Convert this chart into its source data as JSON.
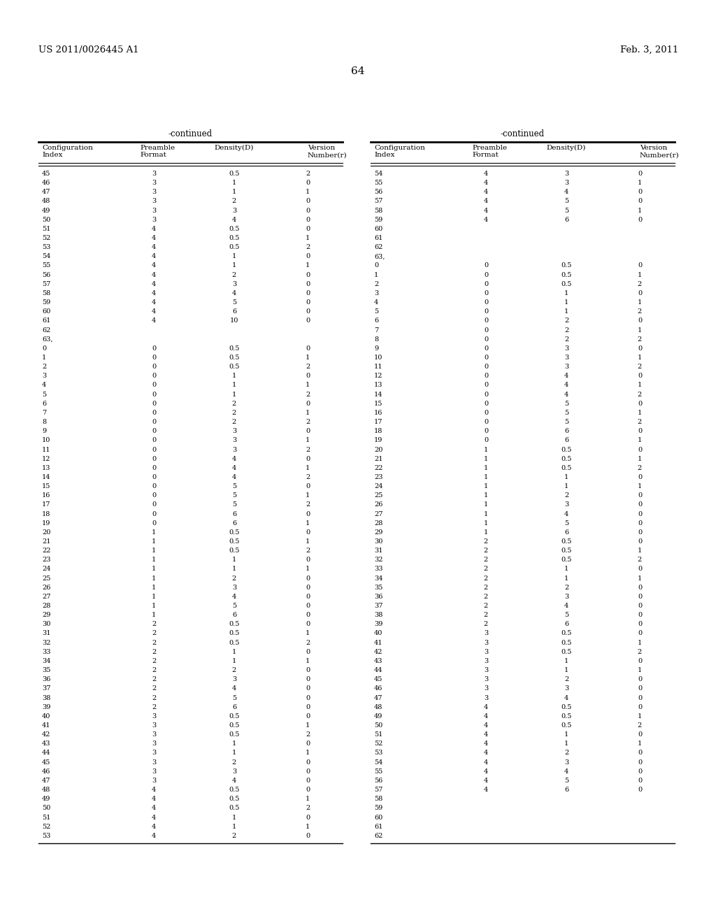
{
  "header_left": "US 2011/0026445 A1",
  "header_right": "Feb. 3, 2011",
  "page_number": "64",
  "continued_label": "-continued",
  "col_headers": [
    "Configuration\nIndex",
    "Preamble\nFormat",
    "Density(D)",
    "Version\nNumber(r)"
  ],
  "left_table_rows": [
    [
      "45",
      "3",
      "0.5",
      "2"
    ],
    [
      "46",
      "3",
      "1",
      "0"
    ],
    [
      "47",
      "3",
      "1",
      "1"
    ],
    [
      "48",
      "3",
      "2",
      "0"
    ],
    [
      "49",
      "3",
      "3",
      "0"
    ],
    [
      "50",
      "3",
      "4",
      "0"
    ],
    [
      "51",
      "4",
      "0.5",
      "0"
    ],
    [
      "52",
      "4",
      "0.5",
      "1"
    ],
    [
      "53",
      "4",
      "0.5",
      "2"
    ],
    [
      "54",
      "4",
      "1",
      "0"
    ],
    [
      "55",
      "4",
      "1",
      "1"
    ],
    [
      "56",
      "4",
      "2",
      "0"
    ],
    [
      "57",
      "4",
      "3",
      "0"
    ],
    [
      "58",
      "4",
      "4",
      "0"
    ],
    [
      "59",
      "4",
      "5",
      "0"
    ],
    [
      "60",
      "4",
      "6",
      "0"
    ],
    [
      "61",
      "4",
      "10",
      "0"
    ],
    [
      "62",
      "",
      "",
      ""
    ],
    [
      "63,",
      "",
      "",
      ""
    ],
    [
      "0",
      "0",
      "0.5",
      "0"
    ],
    [
      "1",
      "0",
      "0.5",
      "1"
    ],
    [
      "2",
      "0",
      "0.5",
      "2"
    ],
    [
      "3",
      "0",
      "1",
      "0"
    ],
    [
      "4",
      "0",
      "1",
      "1"
    ],
    [
      "5",
      "0",
      "1",
      "2"
    ],
    [
      "6",
      "0",
      "2",
      "0"
    ],
    [
      "7",
      "0",
      "2",
      "1"
    ],
    [
      "8",
      "0",
      "2",
      "2"
    ],
    [
      "9",
      "0",
      "3",
      "0"
    ],
    [
      "10",
      "0",
      "3",
      "1"
    ],
    [
      "11",
      "0",
      "3",
      "2"
    ],
    [
      "12",
      "0",
      "4",
      "0"
    ],
    [
      "13",
      "0",
      "4",
      "1"
    ],
    [
      "14",
      "0",
      "4",
      "2"
    ],
    [
      "15",
      "0",
      "5",
      "0"
    ],
    [
      "16",
      "0",
      "5",
      "1"
    ],
    [
      "17",
      "0",
      "5",
      "2"
    ],
    [
      "18",
      "0",
      "6",
      "0"
    ],
    [
      "19",
      "0",
      "6",
      "1"
    ],
    [
      "20",
      "1",
      "0.5",
      "0"
    ],
    [
      "21",
      "1",
      "0.5",
      "1"
    ],
    [
      "22",
      "1",
      "0.5",
      "2"
    ],
    [
      "23",
      "1",
      "1",
      "0"
    ],
    [
      "24",
      "1",
      "1",
      "1"
    ],
    [
      "25",
      "1",
      "2",
      "0"
    ],
    [
      "26",
      "1",
      "3",
      "0"
    ],
    [
      "27",
      "1",
      "4",
      "0"
    ],
    [
      "28",
      "1",
      "5",
      "0"
    ],
    [
      "29",
      "1",
      "6",
      "0"
    ],
    [
      "30",
      "2",
      "0.5",
      "0"
    ],
    [
      "31",
      "2",
      "0.5",
      "1"
    ],
    [
      "32",
      "2",
      "0.5",
      "2"
    ],
    [
      "33",
      "2",
      "1",
      "0"
    ],
    [
      "34",
      "2",
      "1",
      "1"
    ],
    [
      "35",
      "2",
      "2",
      "0"
    ],
    [
      "36",
      "2",
      "3",
      "0"
    ],
    [
      "37",
      "2",
      "4",
      "0"
    ],
    [
      "38",
      "2",
      "5",
      "0"
    ],
    [
      "39",
      "2",
      "6",
      "0"
    ],
    [
      "40",
      "3",
      "0.5",
      "0"
    ],
    [
      "41",
      "3",
      "0.5",
      "1"
    ],
    [
      "42",
      "3",
      "0.5",
      "2"
    ],
    [
      "43",
      "3",
      "1",
      "0"
    ],
    [
      "44",
      "3",
      "1",
      "1"
    ],
    [
      "45",
      "3",
      "2",
      "0"
    ],
    [
      "46",
      "3",
      "3",
      "0"
    ],
    [
      "47",
      "3",
      "4",
      "0"
    ],
    [
      "48",
      "4",
      "0.5",
      "0"
    ],
    [
      "49",
      "4",
      "0.5",
      "1"
    ],
    [
      "50",
      "4",
      "0.5",
      "2"
    ],
    [
      "51",
      "4",
      "1",
      "0"
    ],
    [
      "52",
      "4",
      "1",
      "1"
    ],
    [
      "53",
      "4",
      "2",
      "0"
    ]
  ],
  "right_table_rows": [
    [
      "54",
      "4",
      "3",
      "0"
    ],
    [
      "55",
      "4",
      "3",
      "1"
    ],
    [
      "56",
      "4",
      "4",
      "0"
    ],
    [
      "57",
      "4",
      "5",
      "0"
    ],
    [
      "58",
      "4",
      "5",
      "1"
    ],
    [
      "59",
      "4",
      "6",
      "0"
    ],
    [
      "60",
      "",
      "",
      ""
    ],
    [
      "61",
      "",
      "",
      ""
    ],
    [
      "62",
      "",
      "",
      ""
    ],
    [
      "63,",
      "",
      "",
      ""
    ],
    [
      "0",
      "0",
      "0.5",
      "0"
    ],
    [
      "1",
      "0",
      "0.5",
      "1"
    ],
    [
      "2",
      "0",
      "0.5",
      "2"
    ],
    [
      "3",
      "0",
      "1",
      "0"
    ],
    [
      "4",
      "0",
      "1",
      "1"
    ],
    [
      "5",
      "0",
      "1",
      "2"
    ],
    [
      "6",
      "0",
      "2",
      "0"
    ],
    [
      "7",
      "0",
      "2",
      "1"
    ],
    [
      "8",
      "0",
      "2",
      "2"
    ],
    [
      "9",
      "0",
      "3",
      "0"
    ],
    [
      "10",
      "0",
      "3",
      "1"
    ],
    [
      "11",
      "0",
      "3",
      "2"
    ],
    [
      "12",
      "0",
      "4",
      "0"
    ],
    [
      "13",
      "0",
      "4",
      "1"
    ],
    [
      "14",
      "0",
      "4",
      "2"
    ],
    [
      "15",
      "0",
      "5",
      "0"
    ],
    [
      "16",
      "0",
      "5",
      "1"
    ],
    [
      "17",
      "0",
      "5",
      "2"
    ],
    [
      "18",
      "0",
      "6",
      "0"
    ],
    [
      "19",
      "0",
      "6",
      "1"
    ],
    [
      "20",
      "1",
      "0.5",
      "0"
    ],
    [
      "21",
      "1",
      "0.5",
      "1"
    ],
    [
      "22",
      "1",
      "0.5",
      "2"
    ],
    [
      "23",
      "1",
      "1",
      "0"
    ],
    [
      "24",
      "1",
      "1",
      "1"
    ],
    [
      "25",
      "1",
      "2",
      "0"
    ],
    [
      "26",
      "1",
      "3",
      "0"
    ],
    [
      "27",
      "1",
      "4",
      "0"
    ],
    [
      "28",
      "1",
      "5",
      "0"
    ],
    [
      "29",
      "1",
      "6",
      "0"
    ],
    [
      "30",
      "2",
      "0.5",
      "0"
    ],
    [
      "31",
      "2",
      "0.5",
      "1"
    ],
    [
      "32",
      "2",
      "0.5",
      "2"
    ],
    [
      "33",
      "2",
      "1",
      "0"
    ],
    [
      "34",
      "2",
      "1",
      "1"
    ],
    [
      "35",
      "2",
      "2",
      "0"
    ],
    [
      "36",
      "2",
      "3",
      "0"
    ],
    [
      "37",
      "2",
      "4",
      "0"
    ],
    [
      "38",
      "2",
      "5",
      "0"
    ],
    [
      "39",
      "2",
      "6",
      "0"
    ],
    [
      "40",
      "3",
      "0.5",
      "0"
    ],
    [
      "41",
      "3",
      "0.5",
      "1"
    ],
    [
      "42",
      "3",
      "0.5",
      "2"
    ],
    [
      "43",
      "3",
      "1",
      "0"
    ],
    [
      "44",
      "3",
      "1",
      "1"
    ],
    [
      "45",
      "3",
      "2",
      "0"
    ],
    [
      "46",
      "3",
      "3",
      "0"
    ],
    [
      "47",
      "3",
      "4",
      "0"
    ],
    [
      "48",
      "4",
      "0.5",
      "0"
    ],
    [
      "49",
      "4",
      "0.5",
      "1"
    ],
    [
      "50",
      "4",
      "0.5",
      "2"
    ],
    [
      "51",
      "4",
      "1",
      "0"
    ],
    [
      "52",
      "4",
      "1",
      "1"
    ],
    [
      "53",
      "4",
      "2",
      "0"
    ],
    [
      "54",
      "4",
      "3",
      "0"
    ],
    [
      "55",
      "4",
      "4",
      "0"
    ],
    [
      "56",
      "4",
      "5",
      "0"
    ],
    [
      "57",
      "4",
      "6",
      "0"
    ],
    [
      "58",
      "",
      "",
      ""
    ],
    [
      "59",
      "",
      "",
      ""
    ],
    [
      "60",
      "",
      "",
      ""
    ],
    [
      "61",
      "",
      "",
      ""
    ],
    [
      "62",
      "",
      "",
      ""
    ]
  ],
  "bg_color": "#ffffff",
  "text_color": "#000000",
  "font_size": 7.0,
  "col_header_font_size": 7.5,
  "continued_font_size": 8.5,
  "header_font_size": 9.5,
  "page_num_font_size": 11
}
